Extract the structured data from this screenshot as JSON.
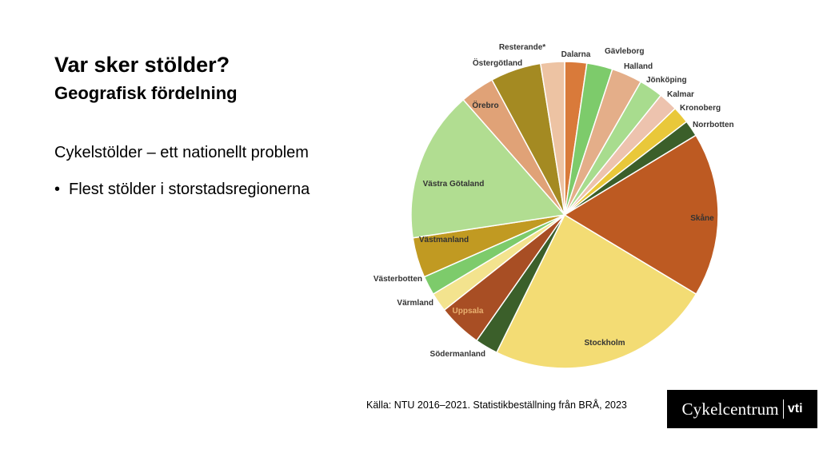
{
  "slide": {
    "title": "Var sker stölder?",
    "subtitle": "Geografisk fördelning",
    "lead": "Cykelstölder – ett nationellt problem",
    "bullet": "Flest stölder i storstadsregionerna",
    "source": "Källa: NTU 2016–2021. Statistikbeställning från BRÅ, 2023",
    "logo_main": "Cykelcentrum",
    "logo_vti": "vti"
  },
  "chart_data": {
    "type": "pie",
    "title": "",
    "start_angle_deg": 0,
    "direction": "clockwise",
    "slices": [
      {
        "label": "Dalarna",
        "value": 2.3,
        "color": "#D97A3A",
        "label_inside": false
      },
      {
        "label": "Gävleborg",
        "value": 2.7,
        "color": "#7DCB6B",
        "label_inside": false
      },
      {
        "label": "Halland",
        "value": 3.2,
        "color": "#E4AE89",
        "label_inside": false
      },
      {
        "label": "Jönköping",
        "value": 2.5,
        "color": "#A8DC8E",
        "label_inside": false
      },
      {
        "label": "Kalmar",
        "value": 2.0,
        "color": "#EDC3AE",
        "label_inside": false
      },
      {
        "label": "Kronoberg",
        "value": 1.8,
        "color": "#E9C83A",
        "label_inside": false
      },
      {
        "label": "Norrbotten",
        "value": 1.7,
        "color": "#3B5F2A",
        "label_inside": false
      },
      {
        "label": "Skåne",
        "value": 17.2,
        "color": "#BD5A22",
        "label_inside": true
      },
      {
        "label": "Stockholm",
        "value": 23.5,
        "color": "#F3DC74",
        "label_inside": true
      },
      {
        "label": "Södermanland",
        "value": 2.4,
        "color": "#3B5F2A",
        "label_inside": false
      },
      {
        "label": "Uppsala",
        "value": 4.6,
        "color": "#A84E24",
        "label_inside": true
      },
      {
        "label": "Värmland",
        "value": 2.0,
        "color": "#F3E38E",
        "label_inside": false
      },
      {
        "label": "Västerbotten",
        "value": 2.0,
        "color": "#7DCB6B",
        "label_inside": false
      },
      {
        "label": "Västmanland",
        "value": 4.2,
        "color": "#C19A22",
        "label_inside": true
      },
      {
        "label": "Västra Götaland",
        "value": 15.8,
        "color": "#B1DD91",
        "label_inside": true
      },
      {
        "label": "Örebro",
        "value": 3.6,
        "color": "#E0A277",
        "label_inside": true
      },
      {
        "label": "Östergötland",
        "value": 5.3,
        "color": "#A48A22",
        "label_inside": false
      },
      {
        "label": "Resterande*",
        "value": 2.5,
        "color": "#EDC3A3",
        "label_inside": false
      }
    ]
  }
}
